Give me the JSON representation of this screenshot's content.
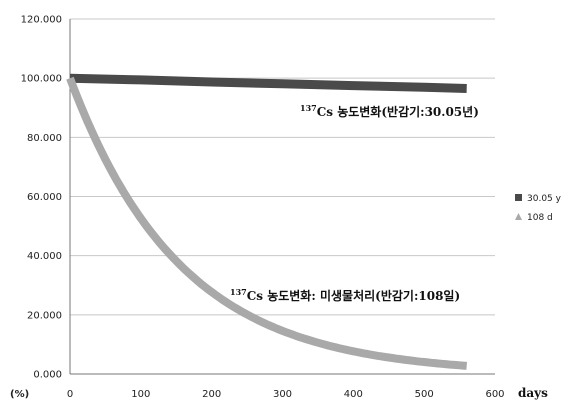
{
  "chart_data": {
    "type": "line",
    "x_unit_label": "days",
    "y_unit_label": "(%)",
    "xlim": [
      0,
      600
    ],
    "ylim": [
      0,
      120
    ],
    "x_ticks": [
      "0",
      "100",
      "200",
      "300",
      "400",
      "500",
      "600"
    ],
    "y_ticks": [
      "0.000",
      "20.000",
      "40.000",
      "60.000",
      "80.000",
      "100.000",
      "120.000"
    ],
    "grid": "horizontal",
    "legend_position": "right",
    "series": [
      {
        "name": "30.05 y",
        "color": "#4a4a4a",
        "marker": "square",
        "x": [
          0,
          100,
          200,
          300,
          400,
          500,
          560
        ],
        "y": [
          100,
          99.4,
          98.7,
          98.1,
          97.5,
          96.9,
          96.5
        ]
      },
      {
        "name": "108 d",
        "color": "#a9a9a9",
        "marker": "triangle",
        "x": [
          0,
          25,
          50,
          75,
          100,
          150,
          200,
          250,
          300,
          350,
          400,
          450,
          500,
          560
        ],
        "y": [
          100,
          85.2,
          72.6,
          61.8,
          52.6,
          38.2,
          27.7,
          20.1,
          14.6,
          10.6,
          7.7,
          5.6,
          4.0,
          2.7
        ]
      }
    ],
    "annotations": [
      {
        "sup": "137",
        "text": "Cs 농도변화(반감기:30.05년)"
      },
      {
        "sup": "137",
        "text": "Cs 농도변화: 미생물처리(반감기:108일)"
      }
    ]
  }
}
